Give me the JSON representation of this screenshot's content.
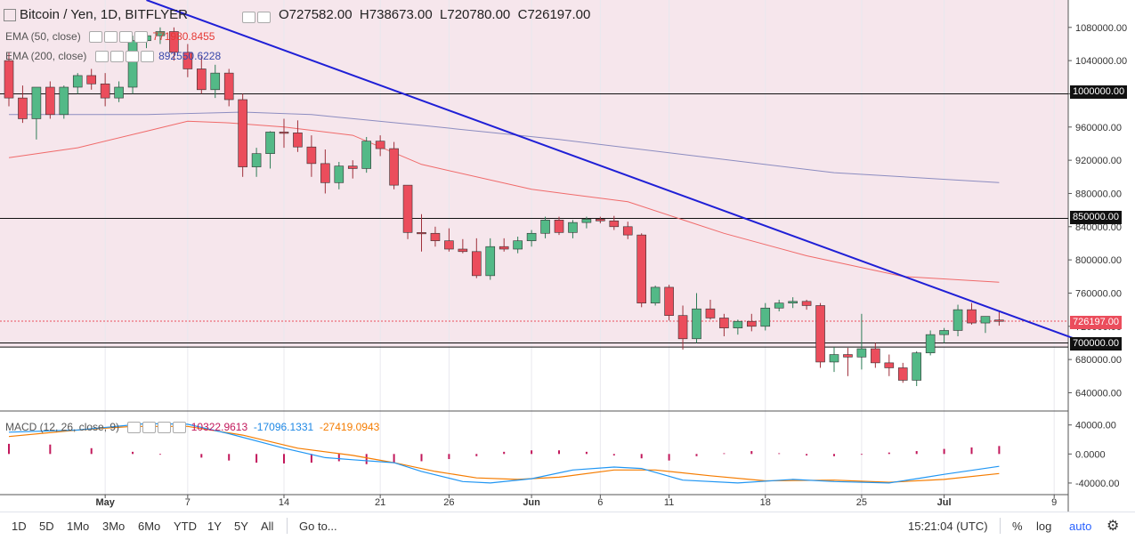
{
  "header": {
    "symbol": "Bitcoin / Yen, 1D, BITFLYER",
    "open": "O727582.00",
    "high": "H738673.00",
    "low": "L720780.00",
    "close": "C726197.00"
  },
  "indicators": {
    "ema50_label": "EMA (50, close)",
    "ema50_value": "771980.8455",
    "ema200_label": "EMA (200, close)",
    "ema200_value": "892550.6228",
    "macd_label": "MACD (12, 26, close, 9)",
    "macd_hist": "10322.9613",
    "macd_line": "-17096.1331",
    "macd_signal": "-27419.0943"
  },
  "colors": {
    "up": "#53b987",
    "down": "#eb4d5c",
    "trend": "#1f1fd6",
    "ema50": "#f06a6a",
    "ema200": "#8c8cc0",
    "macd": "#2196f3",
    "signal": "#f57c00",
    "hist": "#c2185b",
    "panel_bg": "#f6e6ec"
  },
  "price_tags": {
    "current": "726197.00",
    "level_1000000": "1000000.00",
    "level_850000": "850000.00",
    "level_700000": "700000.00"
  },
  "timeframes": [
    "1D",
    "5D",
    "1Mo",
    "3Mo",
    "6Mo",
    "YTD",
    "1Y",
    "5Y",
    "All"
  ],
  "goto_label": "Go to...",
  "clock": "15:21:04 (UTC)",
  "scale_buttons": {
    "percent": "%",
    "log": "log",
    "auto": "auto"
  },
  "chart_data": [
    {
      "type": "candlestick",
      "title": "Bitcoin / Yen, 1D, BITFLYER",
      "y_ticks": [
        640000,
        680000,
        720000,
        760000,
        800000,
        840000,
        880000,
        920000,
        960000,
        1000000,
        1040000,
        1080000
      ],
      "y_tick_labels": [
        "640000.00",
        "680000.00",
        "720000.00",
        "760000.00",
        "800000.00",
        "840000.00",
        "880000.00",
        "920000.00",
        "960000.00",
        "1000000.00",
        "1040000.00",
        "1080000.00"
      ],
      "ylim": [
        618000,
        1113000
      ],
      "x_tick_labels": [
        {
          "label": "May",
          "index": 7
        },
        {
          "label": "7",
          "index": 13
        },
        {
          "label": "14",
          "index": 20
        },
        {
          "label": "21",
          "index": 27
        },
        {
          "label": "26",
          "index": 32
        },
        {
          "label": "Jun",
          "index": 38
        },
        {
          "label": "6",
          "index": 43
        },
        {
          "label": "11",
          "index": 48
        },
        {
          "label": "18",
          "index": 55
        },
        {
          "label": "25",
          "index": 62
        },
        {
          "label": "Jul",
          "index": 68
        },
        {
          "label": "9",
          "index": 76
        }
      ],
      "horizontal_levels": [
        1000000,
        850000,
        700000,
        695000
      ],
      "trendline": {
        "from": {
          "index": 10,
          "price": 1113000
        },
        "to": {
          "index": 77.5,
          "price": 705000
        }
      },
      "ohlc": [
        [
          1040000,
          1050000,
          985000,
          995000
        ],
        [
          995000,
          1010000,
          965000,
          970000
        ],
        [
          970000,
          1005000,
          945000,
          1008000
        ],
        [
          1008000,
          1015000,
          970000,
          975000
        ],
        [
          975000,
          1010000,
          970000,
          1008000
        ],
        [
          1008000,
          1025000,
          1000000,
          1022000
        ],
        [
          1022000,
          1030000,
          1005000,
          1012000
        ],
        [
          1012000,
          1025000,
          985000,
          995000
        ],
        [
          995000,
          1015000,
          990000,
          1008000
        ],
        [
          1008000,
          1070000,
          1000000,
          1064000
        ],
        [
          1064000,
          1075000,
          1055000,
          1070000
        ],
        [
          1070000,
          1080000,
          1060000,
          1075000
        ],
        [
          1075000,
          1080000,
          1040000,
          1050000
        ],
        [
          1050000,
          1060000,
          1020000,
          1030000
        ],
        [
          1030000,
          1045000,
          1000000,
          1005000
        ],
        [
          1005000,
          1035000,
          995000,
          1025000
        ],
        [
          1025000,
          1030000,
          985000,
          993000
        ],
        [
          993000,
          1000000,
          900000,
          912000
        ],
        [
          912000,
          935000,
          900000,
          928000
        ],
        [
          928000,
          955000,
          910000,
          954000
        ],
        [
          954000,
          970000,
          935000,
          953000
        ],
        [
          953000,
          968000,
          930000,
          936000
        ],
        [
          936000,
          950000,
          900000,
          916000
        ],
        [
          916000,
          933000,
          880000,
          893000
        ],
        [
          893000,
          918000,
          885000,
          913000
        ],
        [
          913000,
          920000,
          898000,
          910000
        ],
        [
          910000,
          948000,
          905000,
          943000
        ],
        [
          943000,
          950000,
          925000,
          934000
        ],
        [
          934000,
          942000,
          885000,
          890000
        ],
        [
          890000,
          890000,
          825000,
          833000
        ],
        [
          833000,
          855000,
          810000,
          832000
        ],
        [
          832000,
          840000,
          816000,
          823000
        ],
        [
          823000,
          838000,
          810000,
          813000
        ],
        [
          813000,
          825000,
          808000,
          810000
        ],
        [
          810000,
          826000,
          778000,
          781000
        ],
        [
          781000,
          826000,
          776000,
          816000
        ],
        [
          816000,
          826000,
          810000,
          813000
        ],
        [
          813000,
          828000,
          808000,
          823000
        ],
        [
          823000,
          836000,
          816000,
          832000
        ],
        [
          832000,
          852000,
          826000,
          848000
        ],
        [
          848000,
          852000,
          830000,
          833000
        ],
        [
          833000,
          848000,
          826000,
          845000
        ],
        [
          845000,
          852000,
          838000,
          849000
        ],
        [
          849000,
          852000,
          844000,
          847000
        ],
        [
          847000,
          853000,
          836000,
          840000
        ],
        [
          840000,
          846000,
          825000,
          830000
        ],
        [
          830000,
          832000,
          743000,
          748000
        ],
        [
          748000,
          769000,
          745000,
          767000
        ],
        [
          767000,
          770000,
          727000,
          733000
        ],
        [
          733000,
          745000,
          692000,
          705000
        ],
        [
          705000,
          760000,
          700000,
          741000
        ],
        [
          741000,
          752000,
          728000,
          730000
        ],
        [
          730000,
          735000,
          708000,
          718000
        ],
        [
          718000,
          728000,
          710000,
          726000
        ],
        [
          726000,
          735000,
          714000,
          720000
        ],
        [
          720000,
          748000,
          715000,
          742000
        ],
        [
          742000,
          752000,
          738000,
          748000
        ],
        [
          748000,
          755000,
          742000,
          750000
        ],
        [
          750000,
          752000,
          740000,
          745000
        ],
        [
          745000,
          748000,
          670000,
          677000
        ],
        [
          677000,
          695000,
          665000,
          686000
        ],
        [
          686000,
          694000,
          660000,
          683000
        ],
        [
          683000,
          735000,
          668000,
          693000
        ],
        [
          693000,
          700000,
          670000,
          676000
        ],
        [
          676000,
          686000,
          660000,
          670000
        ],
        [
          670000,
          676000,
          652000,
          655000
        ],
        [
          655000,
          690000,
          648000,
          688000
        ],
        [
          688000,
          715000,
          685000,
          710000
        ],
        [
          710000,
          718000,
          700000,
          715000
        ],
        [
          715000,
          746000,
          708000,
          740000
        ],
        [
          740000,
          748000,
          722000,
          724000
        ],
        [
          724000,
          732000,
          712000,
          732000
        ],
        [
          727582,
          738673,
          720780,
          726197
        ]
      ],
      "ema50": [
        [
          0,
          923000
        ],
        [
          5,
          935000
        ],
        [
          10,
          955000
        ],
        [
          13,
          967000
        ],
        [
          16,
          965000
        ],
        [
          20,
          960000
        ],
        [
          25,
          950000
        ],
        [
          30,
          915000
        ],
        [
          38,
          885000
        ],
        [
          45,
          870000
        ],
        [
          52,
          832000
        ],
        [
          58,
          805000
        ],
        [
          65,
          780000
        ],
        [
          72,
          773000
        ]
      ],
      "ema200": [
        [
          0,
          975000
        ],
        [
          10,
          975000
        ],
        [
          17,
          978000
        ],
        [
          22,
          975000
        ],
        [
          30,
          962000
        ],
        [
          40,
          945000
        ],
        [
          50,
          925000
        ],
        [
          60,
          905000
        ],
        [
          72,
          893000
        ]
      ],
      "macd": {
        "y_ticks": [
          40000,
          0,
          -40000
        ],
        "y_tick_labels": [
          "40000.00",
          "0.0000",
          "-40000.00"
        ],
        "ylim": [
          -56000,
          58000
        ],
        "macd_line": [
          [
            0,
            30000
          ],
          [
            5,
            33000
          ],
          [
            10,
            42000
          ],
          [
            13,
            41000
          ],
          [
            16,
            28000
          ],
          [
            20,
            8000
          ],
          [
            23,
            -5000
          ],
          [
            25,
            -8000
          ],
          [
            28,
            -12000
          ],
          [
            30,
            -24000
          ],
          [
            33,
            -38000
          ],
          [
            35,
            -40000
          ],
          [
            38,
            -34000
          ],
          [
            41,
            -22000
          ],
          [
            44,
            -18000
          ],
          [
            46,
            -20000
          ],
          [
            49,
            -36000
          ],
          [
            53,
            -40000
          ],
          [
            57,
            -35000
          ],
          [
            60,
            -38000
          ],
          [
            64,
            -40000
          ],
          [
            66,
            -34000
          ],
          [
            68,
            -28000
          ],
          [
            72,
            -17000
          ]
        ],
        "signal_line": [
          [
            0,
            24000
          ],
          [
            5,
            33000
          ],
          [
            9,
            38000
          ],
          [
            13,
            38000
          ],
          [
            17,
            26000
          ],
          [
            21,
            8000
          ],
          [
            25,
            -2000
          ],
          [
            28,
            -12000
          ],
          [
            31,
            -24000
          ],
          [
            34,
            -33000
          ],
          [
            37,
            -35000
          ],
          [
            40,
            -32000
          ],
          [
            44,
            -22000
          ],
          [
            47,
            -22000
          ],
          [
            51,
            -30000
          ],
          [
            55,
            -37000
          ],
          [
            60,
            -36000
          ],
          [
            64,
            -39000
          ],
          [
            68,
            -35000
          ],
          [
            72,
            -27000
          ]
        ],
        "histogram": [
          [
            0,
            14000
          ],
          [
            3,
            13000
          ],
          [
            6,
            8000
          ],
          [
            9,
            3000
          ],
          [
            11,
            -1000
          ],
          [
            14,
            -5000
          ],
          [
            16,
            -9000
          ],
          [
            18,
            -12000
          ],
          [
            20,
            -13000
          ],
          [
            22,
            -12000
          ],
          [
            24,
            -10000
          ],
          [
            26,
            -14000
          ],
          [
            28,
            -12000
          ],
          [
            30,
            -10000
          ],
          [
            32,
            -7000
          ],
          [
            34,
            -3000
          ],
          [
            36,
            3000
          ],
          [
            38,
            5000
          ],
          [
            40,
            5000
          ],
          [
            42,
            3000
          ],
          [
            44,
            -2000
          ],
          [
            46,
            -6000
          ],
          [
            48,
            -9000
          ],
          [
            50,
            -3000
          ],
          [
            52,
            1000
          ],
          [
            54,
            4000
          ],
          [
            56,
            1000
          ],
          [
            58,
            -2000
          ],
          [
            60,
            -3000
          ],
          [
            62,
            -1000
          ],
          [
            64,
            2000
          ],
          [
            66,
            4000
          ],
          [
            68,
            7000
          ],
          [
            70,
            9000
          ],
          [
            72,
            11000
          ]
        ]
      }
    }
  ]
}
